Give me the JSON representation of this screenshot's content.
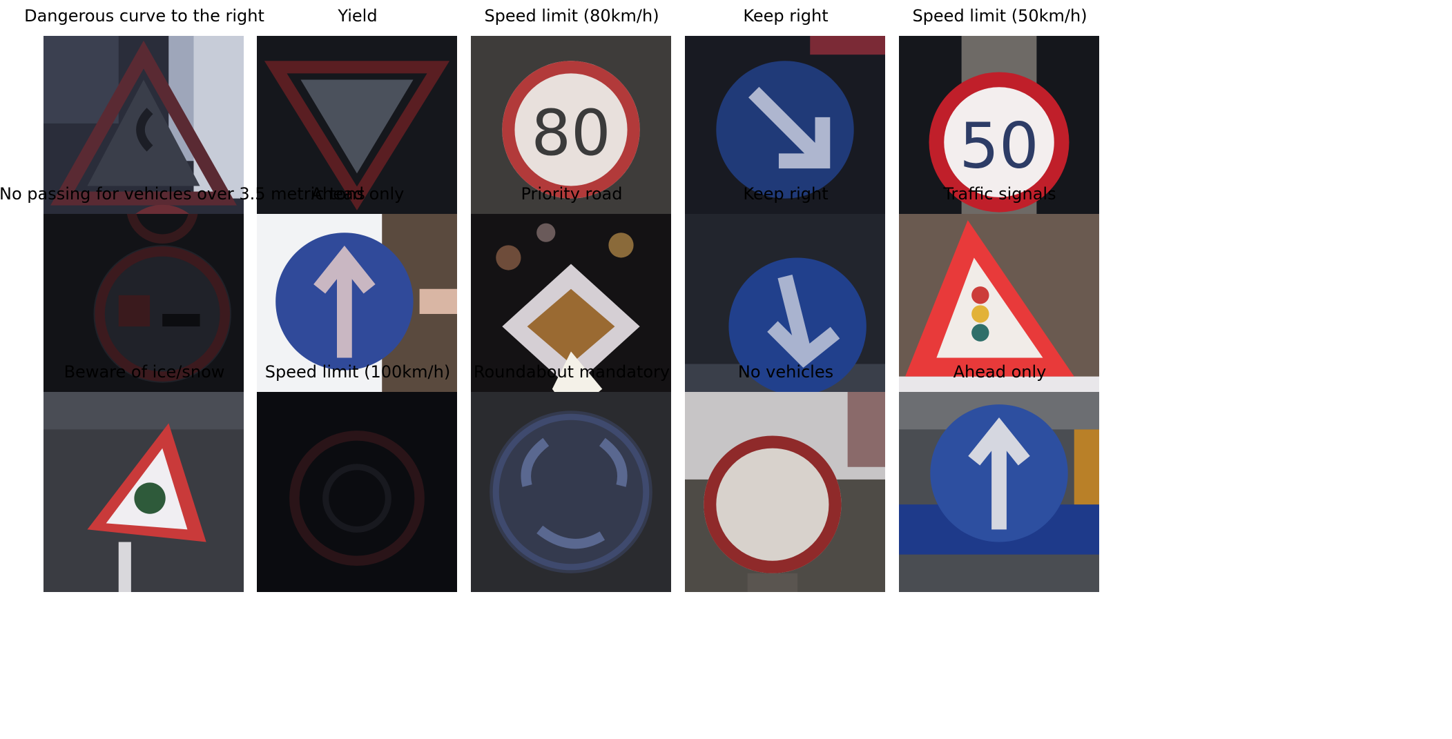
{
  "grid": {
    "cells": [
      {
        "title": "Dangerous curve to the right",
        "icon": "dangerous-curve-right-sign",
        "scene": "tri-curve"
      },
      {
        "title": "Yield",
        "icon": "yield-sign",
        "scene": "yield"
      },
      {
        "title": "Speed limit (80km/h)",
        "icon": "speed-limit-80-sign",
        "scene": "limit80"
      },
      {
        "title": "Keep right",
        "icon": "keep-right-sign",
        "scene": "keepright1"
      },
      {
        "title": "Speed limit (50km/h)",
        "icon": "speed-limit-50-sign",
        "scene": "limit50"
      },
      {
        "title": "No passing for vehicles over 3.5 metric tons",
        "icon": "no-passing-trucks-sign",
        "scene": "nopassing"
      },
      {
        "title": "Ahead only",
        "icon": "ahead-only-sign",
        "scene": "ahead1"
      },
      {
        "title": "Priority road",
        "icon": "priority-road-sign",
        "scene": "priority"
      },
      {
        "title": "Keep right",
        "icon": "keep-right-sign",
        "scene": "keepright2"
      },
      {
        "title": "Traffic signals",
        "icon": "traffic-signals-sign",
        "scene": "signals"
      },
      {
        "title": "Beware of ice/snow",
        "icon": "ice-snow-sign",
        "scene": "ice"
      },
      {
        "title": "Speed limit (100km/h)",
        "icon": "speed-limit-100-sign",
        "scene": "limit100"
      },
      {
        "title": "Roundabout mandatory",
        "icon": "roundabout-sign",
        "scene": "roundabout"
      },
      {
        "title": "No vehicles",
        "icon": "no-vehicles-sign",
        "scene": "novehicles"
      },
      {
        "title": "Ahead only",
        "icon": "ahead-only-sign",
        "scene": "ahead2"
      }
    ]
  }
}
